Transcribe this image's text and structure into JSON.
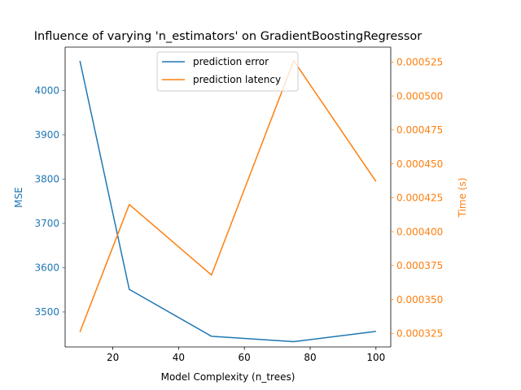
{
  "chart_data": {
    "type": "line",
    "title": "Influence of varying 'n_estimators' on GradientBoostingRegressor",
    "xlabel": "Model Complexity (n_trees)",
    "ylabel_left": "MSE",
    "ylabel_right": "Time (s)",
    "xlim": [
      5.5,
      104.5
    ],
    "ylim_left": [
      3421,
      4098
    ],
    "ylim_right": [
      0.000315,
      0.000536
    ],
    "x_ticks": [
      "20",
      "40",
      "60",
      "80",
      "100"
    ],
    "y_ticks_left": [
      "3500",
      "3600",
      "3700",
      "3800",
      "3900",
      "4000"
    ],
    "y_ticks_right": [
      "0.000325",
      "0.000350",
      "0.000375",
      "0.000400",
      "0.000425",
      "0.000450",
      "0.000475",
      "0.000500",
      "0.000525"
    ],
    "grid": false,
    "legend_position": "top-center",
    "x": [
      10,
      25,
      50,
      75,
      100
    ],
    "series": [
      {
        "name": "prediction error",
        "axis": "left",
        "color": "#1f77b4",
        "values": [
          4067,
          3551,
          3445,
          3433,
          3456
        ]
      },
      {
        "name": "prediction latency",
        "axis": "right",
        "color": "#ff7f0e",
        "values": [
          0.000326,
          0.00042,
          0.000368,
          0.000526,
          0.000437
        ]
      }
    ]
  }
}
